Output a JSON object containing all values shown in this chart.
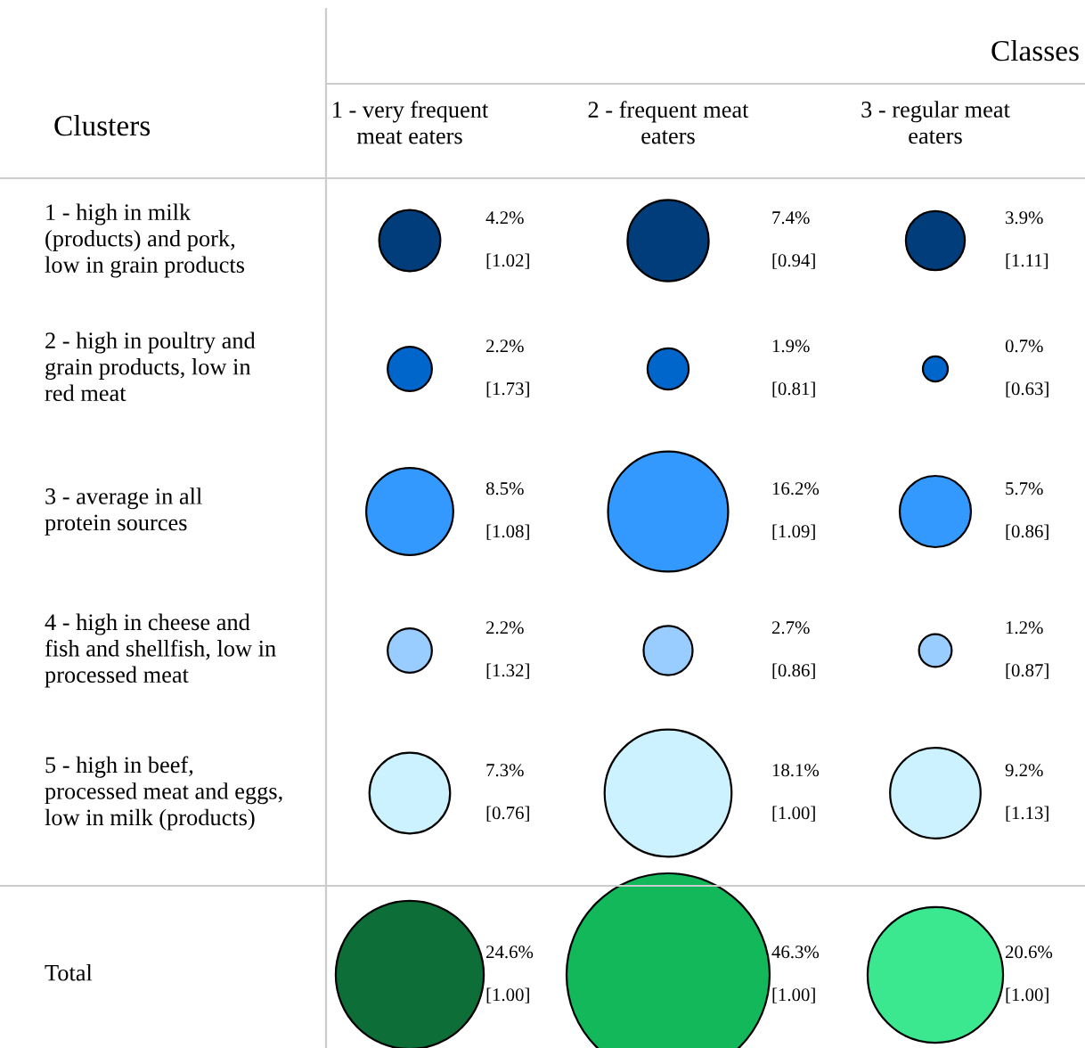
{
  "chart_data": {
    "type": "other",
    "title": "Classes",
    "ylabel": "Clusters",
    "categories": [
      "1 - very frequent\nmeat eaters",
      "2 - frequent meat\neaters",
      "3 - regular meat\neaters"
    ],
    "series": [
      {
        "name": "1 - high in milk\n(products) and pork,\nlow in grain products",
        "colors": [
          "#003d7a",
          "#003d7a",
          "#003d7a"
        ],
        "values": [
          4.2,
          7.4,
          3.9
        ],
        "value_labels": [
          "4.2%",
          "7.4%",
          "3.9%"
        ]
      },
      {
        "name": "2 - high in poultry and\ngrain products, low in\nred meat",
        "colors": [
          "#0066cc",
          "#0066cc",
          "#0066cc"
        ],
        "values": [
          2.2,
          1.9,
          0.7
        ],
        "value_labels": [
          "2.2%",
          "1.9%",
          "0.7%"
        ]
      },
      {
        "name": "3 - average in all\nprotein sources",
        "colors": [
          "#3399ff",
          "#3399ff",
          "#3399ff"
        ],
        "values": [
          8.5,
          16.2,
          5.7
        ],
        "value_labels": [
          "8.5%",
          "16.2%",
          "5.7%"
        ]
      },
      {
        "name": "4 - high in cheese and\nfish and shellfish, low in\nprocessed meat",
        "colors": [
          "#99ccff",
          "#99ccff",
          "#99ccff"
        ],
        "values": [
          2.2,
          2.7,
          1.2
        ],
        "value_labels": [
          "2.2%",
          "2.7%",
          "1.2%"
        ]
      },
      {
        "name": "5 - high in beef,\nprocessed meat and eggs,\nlow in milk (products)",
        "colors": [
          "#ccf2ff",
          "#ccf2ff",
          "#ccf2ff"
        ],
        "values": [
          7.3,
          18.1,
          9.2
        ],
        "value_labels": [
          "7.3%",
          "18.1%",
          "9.2%"
        ]
      },
      {
        "name": "Total",
        "colors": [
          "#0e6e38",
          "#12b85a",
          "#3ce88f"
        ],
        "values": [
          24.6,
          46.3,
          20.6
        ],
        "value_labels": [
          "24.6%",
          "46.3%",
          "20.6%"
        ]
      }
    ],
    "annotations": [
      "[1.02]",
      "[0.94]",
      "[1.11]",
      "[1.73]",
      "[0.81]",
      "[0.63]",
      "[1.08]",
      "[1.09]",
      "[0.86]",
      "[1.32]",
      "[0.86]",
      "[0.87]",
      "[0.76]",
      "[1.00]",
      "[1.13]",
      "[1.00]",
      "[1.00]",
      "[1.00]"
    ]
  }
}
